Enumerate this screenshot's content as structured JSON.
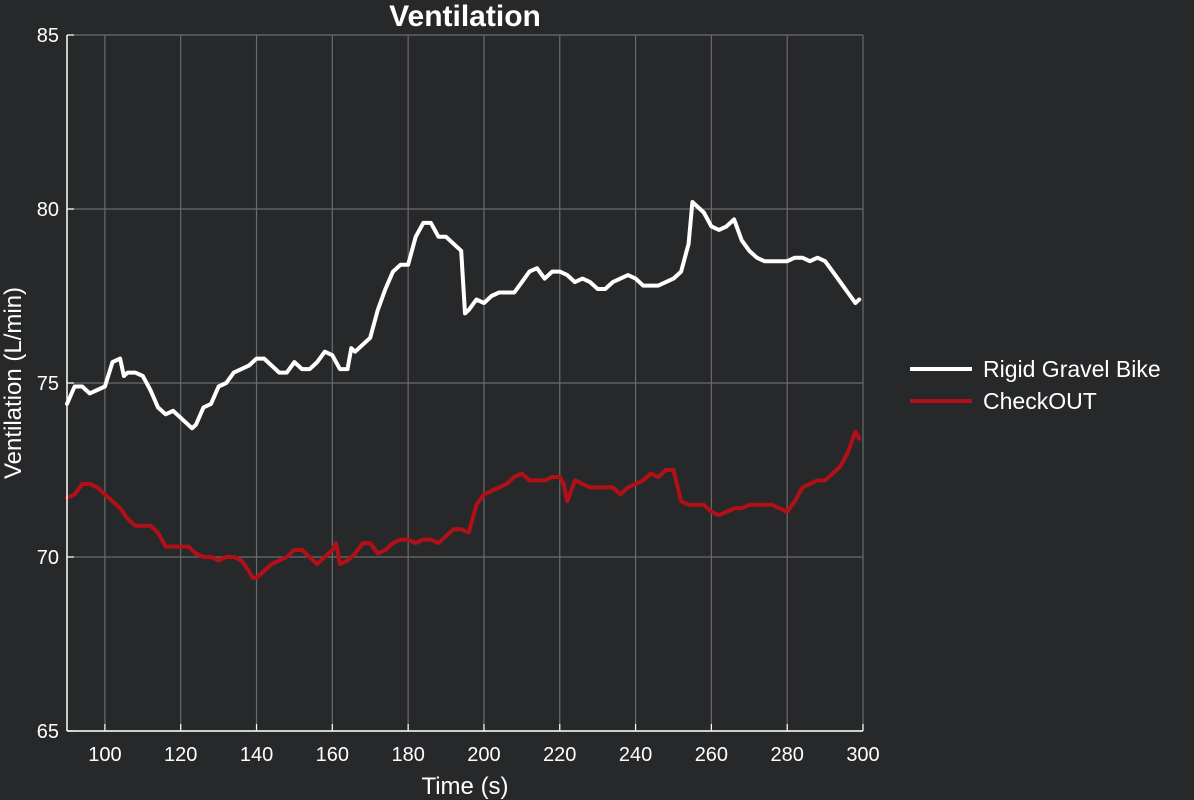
{
  "chart_data": {
    "type": "line",
    "title": "Ventilation",
    "xlabel": "Time (s)",
    "ylabel": "Ventilation (L/min)",
    "xlim": [
      90,
      300
    ],
    "ylim": [
      65,
      85
    ],
    "xticks": [
      100,
      120,
      140,
      160,
      180,
      200,
      220,
      240,
      260,
      280,
      300
    ],
    "yticks": [
      65,
      70,
      75,
      80,
      85
    ],
    "grid": true,
    "legend_position": "right",
    "series": [
      {
        "name": "Rigid Gravel Bike",
        "color": "#ffffff",
        "x": [
          90,
          92,
          94,
          96,
          98,
          100,
          102,
          104,
          105,
          106,
          108,
          110,
          112,
          114,
          116,
          118,
          120,
          122,
          123,
          124,
          126,
          128,
          130,
          132,
          134,
          136,
          138,
          140,
          142,
          144,
          146,
          148,
          150,
          152,
          154,
          156,
          158,
          160,
          162,
          164,
          165,
          166,
          168,
          170,
          172,
          174,
          176,
          178,
          180,
          182,
          184,
          186,
          188,
          190,
          192,
          194,
          195,
          196,
          198,
          200,
          202,
          204,
          206,
          208,
          210,
          212,
          214,
          216,
          218,
          220,
          222,
          224,
          226,
          228,
          230,
          232,
          234,
          236,
          238,
          240,
          242,
          244,
          246,
          248,
          250,
          252,
          254,
          255,
          256,
          258,
          260,
          262,
          264,
          266,
          268,
          270,
          272,
          274,
          276,
          278,
          280,
          282,
          284,
          286,
          288,
          290,
          292,
          294,
          296,
          298,
          299
        ],
        "values": [
          74.4,
          74.9,
          74.9,
          74.7,
          74.8,
          74.9,
          75.6,
          75.7,
          75.2,
          75.3,
          75.3,
          75.2,
          74.8,
          74.3,
          74.1,
          74.2,
          74.0,
          73.8,
          73.7,
          73.8,
          74.3,
          74.4,
          74.9,
          75.0,
          75.3,
          75.4,
          75.5,
          75.7,
          75.7,
          75.5,
          75.3,
          75.3,
          75.6,
          75.4,
          75.4,
          75.6,
          75.9,
          75.8,
          75.4,
          75.4,
          76.0,
          75.9,
          76.1,
          76.3,
          77.1,
          77.7,
          78.2,
          78.4,
          78.4,
          79.2,
          79.6,
          79.6,
          79.2,
          79.2,
          79.0,
          78.8,
          77.0,
          77.1,
          77.4,
          77.3,
          77.5,
          77.6,
          77.6,
          77.6,
          77.9,
          78.2,
          78.3,
          78.0,
          78.2,
          78.2,
          78.1,
          77.9,
          78.0,
          77.9,
          77.7,
          77.7,
          77.9,
          78.0,
          78.1,
          78.0,
          77.8,
          77.8,
          77.8,
          77.9,
          78.0,
          78.2,
          79.0,
          80.2,
          80.1,
          79.9,
          79.5,
          79.4,
          79.5,
          79.7,
          79.1,
          78.8,
          78.6,
          78.5,
          78.5,
          78.5,
          78.5,
          78.6,
          78.6,
          78.5,
          78.6,
          78.5,
          78.2,
          77.9,
          77.6,
          77.3,
          77.4
        ]
      },
      {
        "name": "CheckOUT",
        "color": "#b21017",
        "x": [
          90,
          92,
          94,
          96,
          98,
          100,
          102,
          104,
          106,
          108,
          110,
          112,
          114,
          116,
          118,
          120,
          122,
          124,
          126,
          128,
          130,
          132,
          134,
          136,
          138,
          139,
          140,
          142,
          144,
          146,
          148,
          150,
          152,
          154,
          156,
          158,
          160,
          161,
          162,
          164,
          166,
          168,
          170,
          172,
          174,
          176,
          178,
          180,
          182,
          184,
          186,
          188,
          190,
          192,
          194,
          196,
          198,
          200,
          202,
          204,
          206,
          208,
          210,
          212,
          214,
          216,
          218,
          220,
          221,
          222,
          224,
          226,
          228,
          230,
          232,
          234,
          236,
          238,
          240,
          242,
          244,
          246,
          248,
          250,
          252,
          254,
          256,
          258,
          260,
          262,
          264,
          266,
          268,
          270,
          272,
          274,
          276,
          278,
          280,
          282,
          284,
          286,
          288,
          290,
          292,
          294,
          296,
          298,
          299
        ],
        "values": [
          71.7,
          71.8,
          72.1,
          72.1,
          72.0,
          71.8,
          71.6,
          71.4,
          71.1,
          70.9,
          70.9,
          70.9,
          70.7,
          70.3,
          70.3,
          70.3,
          70.3,
          70.1,
          70.0,
          70.0,
          69.9,
          70.0,
          70.0,
          69.9,
          69.6,
          69.4,
          69.4,
          69.6,
          69.8,
          69.9,
          70.0,
          70.2,
          70.2,
          70.0,
          69.8,
          70.0,
          70.2,
          70.4,
          69.8,
          69.9,
          70.1,
          70.4,
          70.4,
          70.1,
          70.2,
          70.4,
          70.5,
          70.5,
          70.4,
          70.5,
          70.5,
          70.4,
          70.6,
          70.8,
          70.8,
          70.7,
          71.5,
          71.8,
          71.9,
          72.0,
          72.1,
          72.3,
          72.4,
          72.2,
          72.2,
          72.2,
          72.3,
          72.3,
          72.1,
          71.6,
          72.2,
          72.1,
          72.0,
          72.0,
          72.0,
          72.0,
          71.8,
          72.0,
          72.1,
          72.2,
          72.4,
          72.3,
          72.5,
          72.5,
          71.6,
          71.5,
          71.5,
          71.5,
          71.3,
          71.2,
          71.3,
          71.4,
          71.4,
          71.5,
          71.5,
          71.5,
          71.5,
          71.4,
          71.3,
          71.6,
          72.0,
          72.1,
          72.2,
          72.2,
          72.4,
          72.6,
          73.0,
          73.6,
          73.4
        ]
      }
    ]
  }
}
